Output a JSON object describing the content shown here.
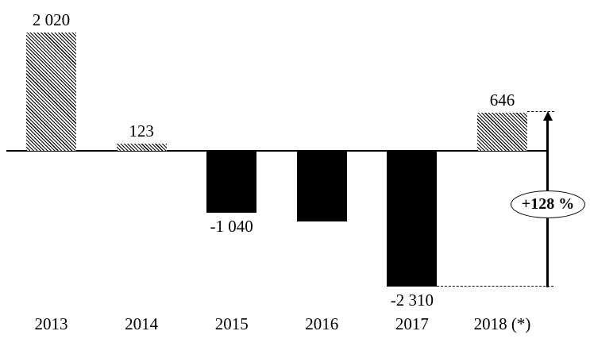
{
  "chart_data": {
    "type": "bar",
    "title": "",
    "xlabel": "",
    "ylabel": "",
    "categories": [
      "2013",
      "2014",
      "2015",
      "2016",
      "2017",
      "2018 (*)"
    ],
    "values": [
      2020,
      123,
      -1040,
      -1190,
      -2310,
      646
    ],
    "data_labels": [
      "2 020",
      "123",
      "-1 040",
      null,
      "-2 310",
      "646"
    ],
    "bar_fills": [
      "hatched",
      "hatched",
      "solid",
      "solid",
      "solid",
      "hatched"
    ],
    "notes": "2016 bar shows no data label; its value is estimated from bar height",
    "ylim": [
      -2310,
      2020
    ],
    "grid": false,
    "legend": false,
    "colors": {
      "ink": "#000000",
      "background": "#ffffff"
    },
    "annotation": {
      "label": "+128 %",
      "from_value": -2310,
      "to_value": 646,
      "shape": "vertical-up-arrow-with-ellipse-badge",
      "guides": "dashed line from top of 2018 bar and from bottom of 2017 bar to the arrow"
    }
  }
}
